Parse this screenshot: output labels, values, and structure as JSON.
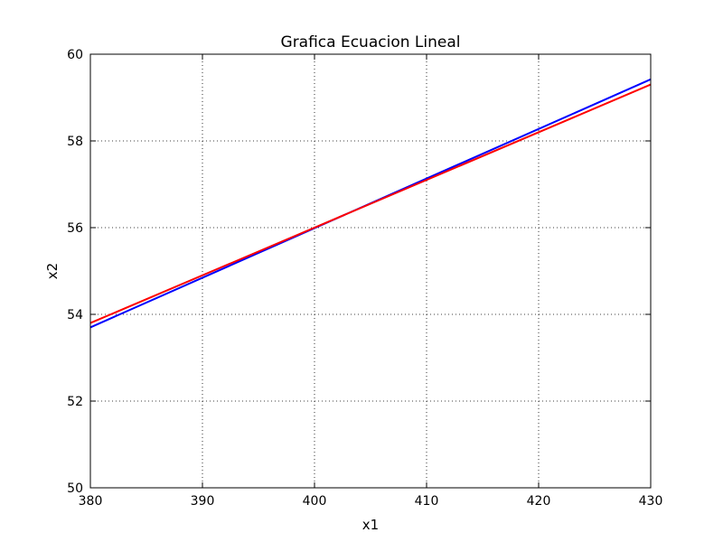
{
  "chart_data": {
    "type": "line",
    "title": "Grafica Ecuacion Lineal",
    "xlabel": "x1",
    "ylabel": "x2",
    "xlim": [
      380,
      430
    ],
    "ylim": [
      50,
      60
    ],
    "xticks": [
      380,
      390,
      400,
      410,
      420,
      430
    ],
    "yticks": [
      50,
      52,
      54,
      56,
      58,
      60
    ],
    "grid": true,
    "series": [
      {
        "color": "#0000ff",
        "x": [
          380,
          430
        ],
        "y": [
          53.7,
          59.42
        ]
      },
      {
        "color": "#ff0000",
        "x": [
          380,
          430
        ],
        "y": [
          53.8,
          59.3
        ]
      }
    ]
  }
}
